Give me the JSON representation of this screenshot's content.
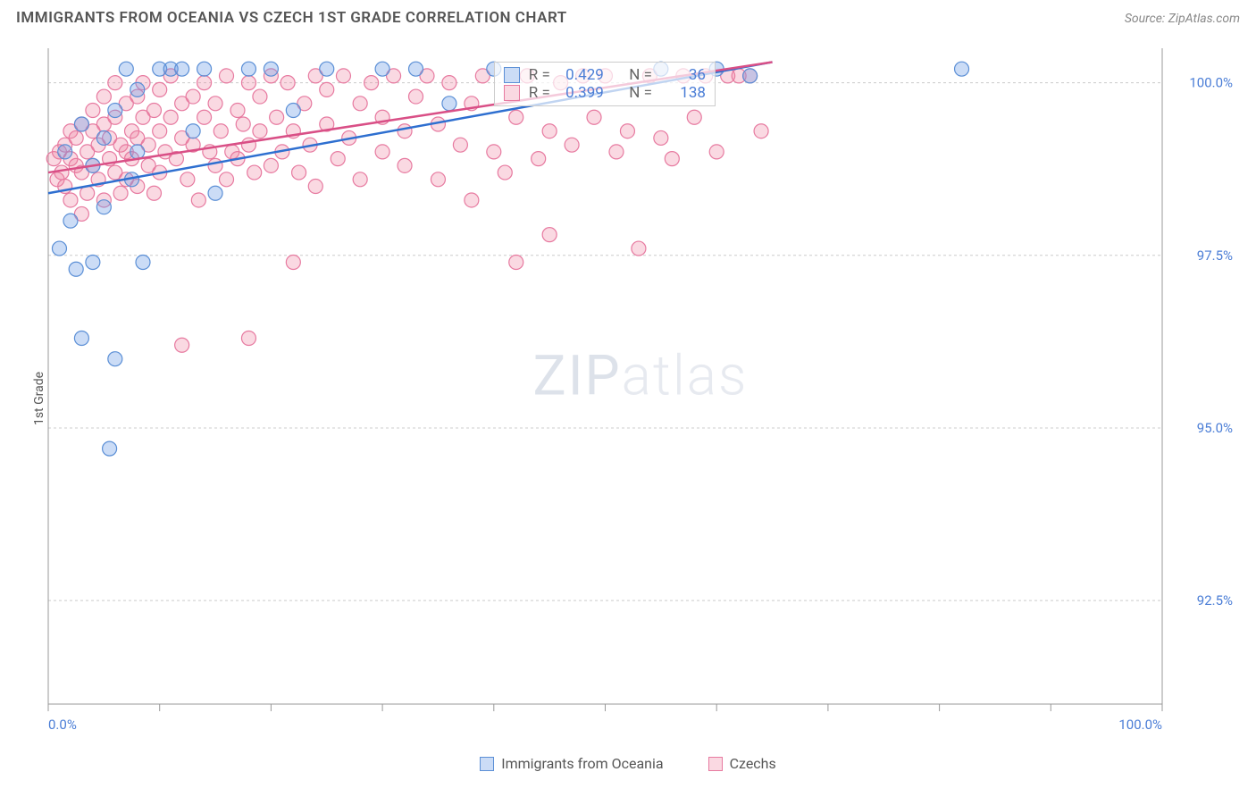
{
  "title": "IMMIGRANTS FROM OCEANIA VS CZECH 1ST GRADE CORRELATION CHART",
  "source_label": "Source:",
  "source_name": "ZipAtlas.com",
  "ylabel": "1st Grade",
  "watermark_a": "ZIP",
  "watermark_b": "atlas",
  "chart": {
    "type": "scatter",
    "background_color": "#ffffff",
    "grid_color": "#cccccc",
    "axis_color": "#999999",
    "tick_label_color": "#4a7dd6",
    "xlim": [
      0,
      100
    ],
    "ylim": [
      91.0,
      100.5
    ],
    "x_ticks": [
      0,
      10,
      20,
      30,
      40,
      50,
      60,
      70,
      80,
      90,
      100
    ],
    "x_tick_labels": {
      "0": "0.0%",
      "100": "100.0%"
    },
    "y_gridlines": [
      92.5,
      95.0,
      97.5,
      100.0
    ],
    "y_tick_labels": [
      "92.5%",
      "95.0%",
      "97.5%",
      "100.0%"
    ],
    "marker_radius": 8,
    "marker_stroke_width": 1.2,
    "line_width": 2.5,
    "series": [
      {
        "key": "oceania",
        "label": "Immigrants from Oceania",
        "fill": "rgba(106,156,228,0.35)",
        "stroke": "#5b8fd6",
        "line_color": "#2e6fd0",
        "R": "0.429",
        "N": "36",
        "trend": {
          "x1": 0,
          "y1": 98.4,
          "x2": 65,
          "y2": 100.3
        },
        "points": [
          [
            1,
            97.6
          ],
          [
            1.5,
            99.0
          ],
          [
            2,
            98.0
          ],
          [
            2.5,
            97.3
          ],
          [
            3,
            99.4
          ],
          [
            3,
            96.3
          ],
          [
            4,
            98.8
          ],
          [
            4,
            97.4
          ],
          [
            5,
            99.2
          ],
          [
            5,
            98.2
          ],
          [
            5.5,
            94.7
          ],
          [
            6,
            99.6
          ],
          [
            6,
            96.0
          ],
          [
            7,
            100.2
          ],
          [
            7.5,
            98.6
          ],
          [
            8,
            99.0
          ],
          [
            8,
            99.9
          ],
          [
            8.5,
            97.4
          ],
          [
            10,
            100.2
          ],
          [
            11,
            100.2
          ],
          [
            12,
            100.2
          ],
          [
            13,
            99.3
          ],
          [
            14,
            100.2
          ],
          [
            15,
            98.4
          ],
          [
            18,
            100.2
          ],
          [
            20,
            100.2
          ],
          [
            22,
            99.6
          ],
          [
            25,
            100.2
          ],
          [
            30,
            100.2
          ],
          [
            33,
            100.2
          ],
          [
            36,
            99.7
          ],
          [
            40,
            100.2
          ],
          [
            55,
            100.2
          ],
          [
            60,
            100.2
          ],
          [
            63,
            100.1
          ],
          [
            82,
            100.2
          ]
        ]
      },
      {
        "key": "czechs",
        "label": "Czechs",
        "fill": "rgba(240,130,160,0.30)",
        "stroke": "#e77aa0",
        "line_color": "#d94f86",
        "R": "0.399",
        "N": "138",
        "trend": {
          "x1": 0,
          "y1": 98.7,
          "x2": 65,
          "y2": 100.3
        },
        "points": [
          [
            0.5,
            98.9
          ],
          [
            0.8,
            98.6
          ],
          [
            1,
            99.0
          ],
          [
            1.2,
            98.7
          ],
          [
            1.5,
            99.1
          ],
          [
            1.5,
            98.5
          ],
          [
            2,
            98.9
          ],
          [
            2,
            99.3
          ],
          [
            2,
            98.3
          ],
          [
            2.5,
            98.8
          ],
          [
            2.5,
            99.2
          ],
          [
            3,
            98.7
          ],
          [
            3,
            99.4
          ],
          [
            3,
            98.1
          ],
          [
            3.5,
            99.0
          ],
          [
            3.5,
            98.4
          ],
          [
            4,
            99.3
          ],
          [
            4,
            98.8
          ],
          [
            4,
            99.6
          ],
          [
            4.5,
            98.6
          ],
          [
            4.5,
            99.1
          ],
          [
            5,
            99.4
          ],
          [
            5,
            98.3
          ],
          [
            5,
            99.8
          ],
          [
            5.5,
            98.9
          ],
          [
            5.5,
            99.2
          ],
          [
            6,
            99.5
          ],
          [
            6,
            98.7
          ],
          [
            6,
            100.0
          ],
          [
            6.5,
            99.1
          ],
          [
            6.5,
            98.4
          ],
          [
            7,
            99.7
          ],
          [
            7,
            99.0
          ],
          [
            7,
            98.6
          ],
          [
            7.5,
            99.3
          ],
          [
            7.5,
            98.9
          ],
          [
            8,
            99.8
          ],
          [
            8,
            99.2
          ],
          [
            8,
            98.5
          ],
          [
            8.5,
            99.5
          ],
          [
            8.5,
            100.0
          ],
          [
            9,
            99.1
          ],
          [
            9,
            98.8
          ],
          [
            9.5,
            99.6
          ],
          [
            9.5,
            98.4
          ],
          [
            10,
            99.9
          ],
          [
            10,
            99.3
          ],
          [
            10,
            98.7
          ],
          [
            10.5,
            99.0
          ],
          [
            11,
            99.5
          ],
          [
            11,
            100.1
          ],
          [
            11.5,
            98.9
          ],
          [
            12,
            99.7
          ],
          [
            12,
            99.2
          ],
          [
            12,
            96.2
          ],
          [
            12.5,
            98.6
          ],
          [
            13,
            99.8
          ],
          [
            13,
            99.1
          ],
          [
            13.5,
            98.3
          ],
          [
            14,
            99.5
          ],
          [
            14,
            100.0
          ],
          [
            14.5,
            99.0
          ],
          [
            15,
            99.7
          ],
          [
            15,
            98.8
          ],
          [
            15.5,
            99.3
          ],
          [
            16,
            100.1
          ],
          [
            16,
            98.6
          ],
          [
            16.5,
            99.0
          ],
          [
            17,
            99.6
          ],
          [
            17,
            98.9
          ],
          [
            17.5,
            99.4
          ],
          [
            18,
            100.0
          ],
          [
            18,
            99.1
          ],
          [
            18,
            96.3
          ],
          [
            18.5,
            98.7
          ],
          [
            19,
            99.8
          ],
          [
            19,
            99.3
          ],
          [
            20,
            100.1
          ],
          [
            20,
            98.8
          ],
          [
            20.5,
            99.5
          ],
          [
            21,
            99.0
          ],
          [
            21.5,
            100.0
          ],
          [
            22,
            99.3
          ],
          [
            22,
            97.4
          ],
          [
            22.5,
            98.7
          ],
          [
            23,
            99.7
          ],
          [
            23.5,
            99.1
          ],
          [
            24,
            100.1
          ],
          [
            24,
            98.5
          ],
          [
            25,
            99.4
          ],
          [
            25,
            99.9
          ],
          [
            26,
            98.9
          ],
          [
            26.5,
            100.1
          ],
          [
            27,
            99.2
          ],
          [
            28,
            99.7
          ],
          [
            28,
            98.6
          ],
          [
            29,
            100.0
          ],
          [
            30,
            99.0
          ],
          [
            30,
            99.5
          ],
          [
            31,
            100.1
          ],
          [
            32,
            98.8
          ],
          [
            32,
            99.3
          ],
          [
            33,
            99.8
          ],
          [
            34,
            100.1
          ],
          [
            35,
            98.6
          ],
          [
            35,
            99.4
          ],
          [
            36,
            100.0
          ],
          [
            37,
            99.1
          ],
          [
            38,
            98.3
          ],
          [
            38,
            99.7
          ],
          [
            39,
            100.1
          ],
          [
            40,
            99.0
          ],
          [
            41,
            98.7
          ],
          [
            42,
            99.5
          ],
          [
            42,
            97.4
          ],
          [
            43,
            100.1
          ],
          [
            44,
            98.9
          ],
          [
            45,
            99.3
          ],
          [
            45,
            97.8
          ],
          [
            46,
            100.0
          ],
          [
            47,
            99.1
          ],
          [
            48,
            100.1
          ],
          [
            49,
            99.5
          ],
          [
            50,
            100.1
          ],
          [
            51,
            99.0
          ],
          [
            52,
            99.3
          ],
          [
            53,
            97.6
          ],
          [
            54,
            100.1
          ],
          [
            55,
            99.2
          ],
          [
            56,
            98.9
          ],
          [
            57,
            100.1
          ],
          [
            58,
            99.5
          ],
          [
            59,
            100.1
          ],
          [
            60,
            99.0
          ],
          [
            61,
            100.1
          ],
          [
            62,
            100.1
          ],
          [
            63,
            100.1
          ],
          [
            64,
            99.3
          ]
        ]
      }
    ]
  },
  "legend": {
    "items": [
      {
        "series": "oceania"
      },
      {
        "series": "czechs"
      }
    ]
  },
  "stats_box": {
    "R_label": "R =",
    "N_label": "N ="
  }
}
